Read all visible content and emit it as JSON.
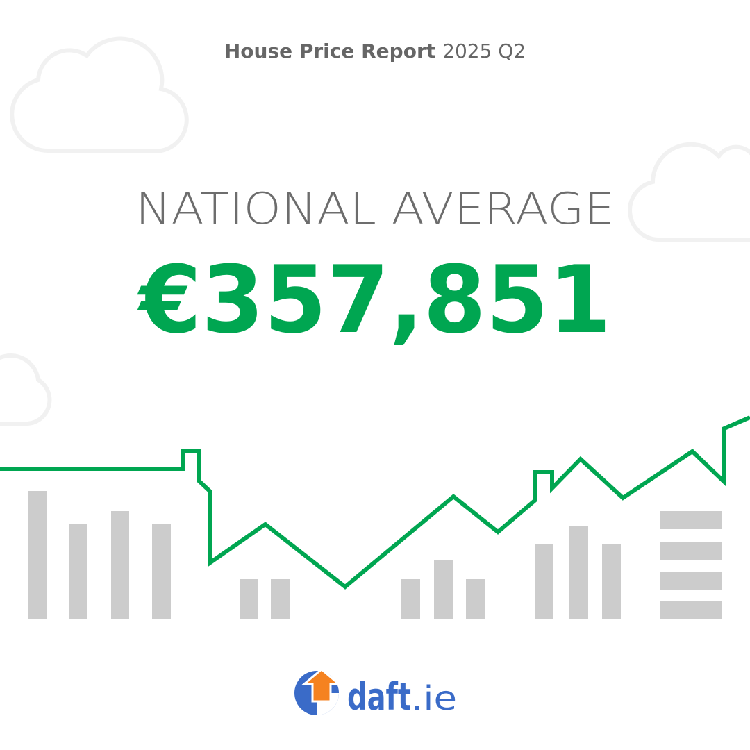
{
  "header": {
    "title": "House Price Report",
    "period": "2025 Q2"
  },
  "headline": {
    "label": "NATIONAL AVERAGE",
    "value": "€357,851"
  },
  "logo": {
    "name": "daft",
    "suffix": ".ie"
  }
}
